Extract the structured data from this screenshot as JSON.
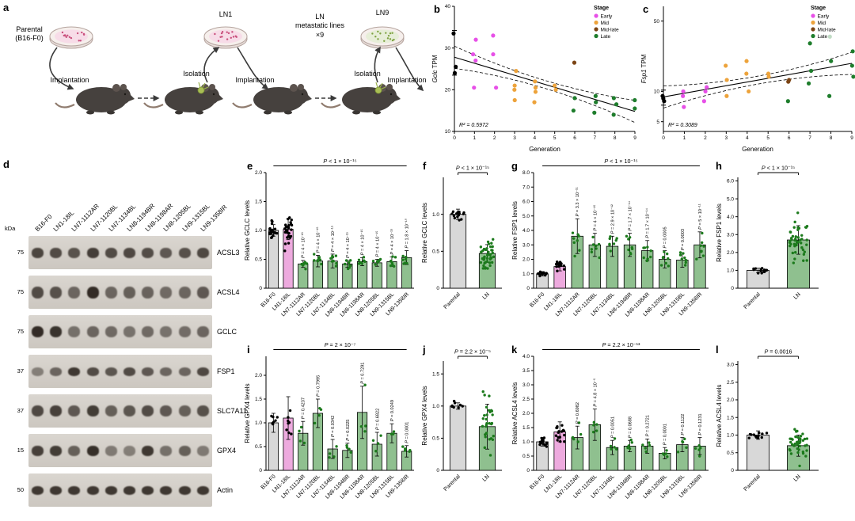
{
  "labels": {
    "a": "a",
    "b": "b",
    "c": "c",
    "d": "d",
    "e": "e",
    "f": "f",
    "g": "g",
    "h": "h",
    "i": "i",
    "j": "j",
    "k": "k",
    "l": "l"
  },
  "colors": {
    "bar_gray": "#d8d8d8",
    "bar_pink": "#edaade",
    "bar_green": "#8fc08f",
    "dot_green": "#1c7a1c",
    "dot_black": "#000000",
    "stage_early": "#e750e7",
    "stage_mid": "#eda33b",
    "stage_midlate": "#7b4414",
    "stage_late": "#1e7d2c"
  },
  "panel_a": {
    "parental_line1": "Parental",
    "parental_line2": "(B16-F0)",
    "ln1": "LN1",
    "ln9": "LN9",
    "met_line1": "LN",
    "met_line2": "metastatic lines",
    "met_line3": "×9",
    "implantation": "Implantation",
    "isolation": "Isolation"
  },
  "panel_d": {
    "kda_header": "kDa",
    "lanes": [
      "B16-F0",
      "LN1-18IL",
      "LN7-1112AR",
      "LN7-1120BL",
      "LN7-1134BL",
      "LN8-1194BR",
      "LN8-1198AR",
      "LN8-1205BL",
      "LN9-1315BL",
      "LN9-1358IR"
    ],
    "blots": [
      {
        "name": "ACSL3",
        "kda": "75",
        "bh": 13,
        "bands": [
          0.75,
          0.7,
          0.65,
          0.8,
          0.7,
          0.72,
          0.68,
          0.6,
          0.66,
          0.72
        ]
      },
      {
        "name": "ACSL4",
        "kda": "75",
        "bh": 15,
        "bands": [
          0.7,
          0.66,
          0.5,
          0.95,
          0.5,
          0.55,
          0.52,
          0.45,
          0.5,
          0.6
        ]
      },
      {
        "name": "GCLC",
        "kda": "75",
        "bh": 14,
        "bands": [
          0.95,
          0.88,
          0.42,
          0.5,
          0.45,
          0.4,
          0.46,
          0.4,
          0.44,
          0.5
        ]
      },
      {
        "name": "FSP1",
        "kda": "37",
        "bh": 11,
        "bands": [
          0.3,
          0.5,
          0.85,
          0.7,
          0.62,
          0.7,
          0.6,
          0.5,
          0.5,
          0.72
        ]
      },
      {
        "name": "SLC7A11",
        "kda": "37",
        "bh": 14,
        "bands": [
          0.72,
          0.78,
          0.6,
          0.82,
          0.55,
          0.62,
          0.7,
          0.6,
          0.55,
          0.66
        ]
      },
      {
        "name": "GPX4",
        "kda": "15",
        "bh": 13,
        "bands": [
          0.78,
          0.82,
          0.55,
          0.92,
          0.35,
          0.3,
          0.85,
          0.42,
          0.55,
          0.35
        ]
      },
      {
        "name": "Actin",
        "kda": "50",
        "bh": 11,
        "bands": [
          0.85,
          0.85,
          0.85,
          0.85,
          0.85,
          0.85,
          0.85,
          0.85,
          0.85,
          0.85
        ]
      }
    ]
  },
  "chart_data": [
    {
      "id": "b",
      "type": "scatter",
      "log": false,
      "ylabel_italic": "Gclc",
      "ylabel_rest": " TPM",
      "xlabel": "Generation",
      "r2": "R² = 0.5972",
      "ylim": [
        10,
        40
      ],
      "yticks": [
        10,
        20,
        30,
        40
      ],
      "ytick_labels": [
        "10",
        "20",
        "30",
        "40"
      ],
      "xlim": [
        0,
        9
      ],
      "xticks": [
        0,
        1,
        2,
        3,
        4,
        5,
        6,
        7,
        8,
        9
      ],
      "legend": {
        "title": "Stage",
        "entries": [
          {
            "label": "Early",
            "color": "#e750e7"
          },
          {
            "label": "Mid",
            "color": "#eda33b"
          },
          {
            "label": "Mid-late",
            "color": "#7b4414"
          },
          {
            "label": "Late",
            "color": "#1e7d2c"
          }
        ]
      },
      "ebar": {
        "x": 0,
        "lo": 23.5,
        "hi": 34.2
      },
      "series": [
        {
          "name": "Parental",
          "color": "#000000",
          "points": [
            [
              0,
              33.5
            ],
            [
              0,
              25.5
            ],
            [
              0,
              24
            ]
          ]
        },
        {
          "name": "Early",
          "color": "#e750e7",
          "points": [
            [
              1,
              32
            ],
            [
              1,
              28.5
            ],
            [
              1,
              27
            ],
            [
              1,
              20.5
            ],
            [
              2,
              33
            ],
            [
              2,
              28.5
            ],
            [
              2,
              20.5
            ]
          ]
        },
        {
          "name": "Mid",
          "color": "#eda33b",
          "points": [
            [
              3,
              24.5
            ],
            [
              3,
              21
            ],
            [
              3,
              20
            ],
            [
              3,
              17.5
            ],
            [
              4,
              22
            ],
            [
              4,
              20.5
            ],
            [
              4,
              19.5
            ],
            [
              4,
              17
            ],
            [
              5,
              21
            ],
            [
              5,
              20
            ]
          ]
        },
        {
          "name": "Mid-late",
          "color": "#7b4414",
          "points": [
            [
              6,
              26.5
            ]
          ]
        },
        {
          "name": "Late",
          "color": "#1e7d2c",
          "points": [
            [
              6,
              18
            ],
            [
              6,
              15
            ],
            [
              7,
              18.5
            ],
            [
              7,
              17
            ],
            [
              7,
              14.5
            ],
            [
              8,
              18
            ],
            [
              8,
              16.5
            ],
            [
              8,
              14
            ],
            [
              9,
              17.5
            ],
            [
              9,
              15.5
            ]
          ]
        }
      ],
      "fit": {
        "start": [
          0,
          27.8
        ],
        "end": [
          9,
          14.8
        ]
      }
    },
    {
      "id": "c",
      "type": "scatter",
      "log": true,
      "ylabel_italic": "Fsp1",
      "ylabel_rest": " TPM",
      "xlabel": "Generation",
      "r2": "R² = 0.3089",
      "ylim": [
        4,
        70
      ],
      "yticks": [
        5,
        10,
        50
      ],
      "ytick_labels": [
        "5",
        "10",
        "50"
      ],
      "xlim": [
        0,
        9
      ],
      "xticks": [
        0,
        1,
        2,
        3,
        4,
        5,
        6,
        7,
        8,
        9
      ],
      "legend": {
        "title": "Stage",
        "entries": [
          {
            "label": "Early",
            "color": "#e750e7"
          },
          {
            "label": "Mid",
            "color": "#eda33b"
          },
          {
            "label": "Mid-late",
            "color": "#7b4414"
          },
          {
            "label": "Late",
            "color": "#1e7d2c"
          }
        ]
      },
      "ebar": {
        "x": 0,
        "lo": 7.3,
        "hi": 10.3
      },
      "series": [
        {
          "name": "Parental",
          "color": "#000000",
          "points": [
            [
              0,
              9
            ],
            [
              0,
              8.5
            ],
            [
              0,
              8
            ]
          ]
        },
        {
          "name": "Early",
          "color": "#e750e7",
          "points": [
            [
              1,
              10
            ],
            [
              1,
              9
            ],
            [
              1,
              7
            ],
            [
              2,
              11
            ],
            [
              2,
              10
            ],
            [
              2,
              8
            ]
          ]
        },
        {
          "name": "Mid",
          "color": "#eda33b",
          "points": [
            [
              3,
              18
            ],
            [
              3,
              13
            ],
            [
              3,
              9
            ],
            [
              4,
              20
            ],
            [
              4,
              15
            ],
            [
              4,
              10
            ],
            [
              5,
              15
            ],
            [
              5,
              14
            ]
          ]
        },
        {
          "name": "Mid-late",
          "color": "#7b4414",
          "points": [
            [
              6,
              13
            ],
            [
              6,
              12.5
            ]
          ]
        },
        {
          "name": "Late",
          "color": "#1e7d2c",
          "points": [
            [
              6,
              8
            ],
            [
              7,
              30
            ],
            [
              7,
              16
            ],
            [
              7,
              12
            ],
            [
              8,
              35
            ],
            [
              8,
              20
            ],
            [
              8,
              9
            ],
            [
              9,
              25
            ],
            [
              9,
              18
            ],
            [
              9,
              14
            ]
          ]
        }
      ],
      "fit": {
        "start": [
          0,
          8.8
        ],
        "end": [
          9,
          19
        ]
      }
    },
    {
      "id": "e",
      "type": "bar",
      "ylabel": "Relative GCLC levels",
      "categories": [
        "B16-F0",
        "LN1-18IL",
        "LN7-1112AR",
        "LN7-1120BL",
        "LN7-1134BL",
        "LN8-1194BR",
        "LN8-1198AR",
        "LN8-1205BL",
        "LN9-1315BL",
        "LN9-1358IR"
      ],
      "values": [
        1.0,
        1.02,
        0.42,
        0.47,
        0.47,
        0.42,
        0.46,
        0.44,
        0.46,
        0.53
      ],
      "errors": [
        0.1,
        0.18,
        0.06,
        0.1,
        0.12,
        0.06,
        0.07,
        0.06,
        0.08,
        0.12
      ],
      "bar_colors": [
        "gray",
        "pink",
        "green",
        "green",
        "green",
        "green",
        "green",
        "green",
        "green",
        "green"
      ],
      "n_dots": [
        22,
        26,
        8,
        8,
        8,
        8,
        8,
        8,
        8,
        8
      ],
      "ylim": [
        0,
        2.0
      ],
      "yticks": [
        0,
        0.5,
        1.0,
        1.5,
        2.0
      ],
      "ytick_labels": [
        "0",
        "0.5",
        "1.0",
        "1.5",
        "2.0"
      ],
      "p_global": "P < 1 × 10⁻¹⁵",
      "p_values": [
        "P = 4 × 10⁻¹⁵",
        "P = 4 × 10⁻¹⁵",
        "P = 4 × 10⁻¹⁵",
        "P = 4 × 10⁻¹⁵",
        "P = 4 × 10⁻¹⁵",
        "P = 4 × 10⁻¹⁵",
        "P = 4 × 10⁻¹⁵",
        "P = 1.8 × 10⁻¹⁰"
      ]
    },
    {
      "id": "f",
      "type": "bar2",
      "ylabel": "Relative GCLC levels",
      "categories": [
        "Parental",
        "LN"
      ],
      "values": [
        1.0,
        0.47
      ],
      "errors": [
        0.07,
        0.12
      ],
      "bar_colors": [
        "gray",
        "green"
      ],
      "n_dots": [
        14,
        45
      ],
      "ylim": [
        0,
        1.5
      ],
      "yticks": [
        0,
        0.5,
        1.0
      ],
      "ytick_labels": [
        "0",
        "0.5",
        "1.0"
      ],
      "p_global": "P < 1 × 10⁻¹⁵"
    },
    {
      "id": "g",
      "type": "bar",
      "ylabel": "Relative FSP1 levels",
      "categories": [
        "B16-F0",
        "LN1-18IL",
        "LN7-1112AR",
        "LN7-1120BL",
        "LN7-1134BL",
        "LN8-1194BR",
        "LN8-1198AR",
        "LN8-1205BL",
        "LN9-1315BL",
        "LN9-1358IR"
      ],
      "values": [
        1.0,
        1.5,
        3.6,
        3.0,
        2.9,
        3.0,
        2.6,
        2.0,
        1.95,
        3.0
      ],
      "errors": [
        0.15,
        0.3,
        1.2,
        0.8,
        0.7,
        0.8,
        0.7,
        0.6,
        0.5,
        0.9
      ],
      "bar_colors": [
        "gray",
        "pink",
        "green",
        "green",
        "green",
        "green",
        "green",
        "green",
        "green",
        "green"
      ],
      "n_dots": [
        14,
        14,
        8,
        8,
        8,
        8,
        8,
        8,
        8,
        8
      ],
      "ylim": [
        0,
        8.0
      ],
      "yticks": [
        0,
        1,
        2,
        3,
        4,
        5,
        6,
        7,
        8
      ],
      "ytick_labels": [
        "0",
        "1.0",
        "2.0",
        "3.0",
        "4.0",
        "5.0",
        "6.0",
        "7.0",
        "8.0"
      ],
      "p_global": "P < 1 × 10⁻¹⁵",
      "p_values": [
        "P = 3.3 × 10⁻¹¹",
        "P = 4 × 10⁻¹⁵",
        "P = 2.9 × 10⁻¹²",
        "P = 1.7 × 10⁻¹⁴",
        "P = 1.7 × 10⁻¹⁴",
        "P = 0.0005",
        "P = 0.0003",
        "P = 5 × 10⁻¹¹"
      ]
    },
    {
      "id": "h",
      "type": "bar2",
      "ylabel": "Relative FSP1 levels",
      "categories": [
        "Parental",
        "LN"
      ],
      "values": [
        1.0,
        2.7
      ],
      "errors": [
        0.12,
        0.8
      ],
      "bar_colors": [
        "gray",
        "green"
      ],
      "n_dots": [
        14,
        45
      ],
      "ylim": [
        0,
        6.2
      ],
      "yticks": [
        0,
        1,
        2,
        3,
        4,
        5,
        6
      ],
      "ytick_labels": [
        "0",
        "1.0",
        "2.0",
        "3.0",
        "4.0",
        "5.0",
        "6.0"
      ],
      "p_global": "P < 1 × 10⁻¹⁵"
    },
    {
      "id": "i",
      "type": "bar",
      "ylabel": "Relative GPX4 levels",
      "categories": [
        "B16-F0",
        "LN1-18IL",
        "LN7-1112AR",
        "LN7-1120BL",
        "LN7-1134BL",
        "LN8-1194BR",
        "LN8-1198AR",
        "LN8-1205BL",
        "LN9-1315BL",
        "LN9-1358IR"
      ],
      "values": [
        1.0,
        1.1,
        0.78,
        1.2,
        0.45,
        0.42,
        1.22,
        0.55,
        0.78,
        0.4
      ],
      "errors": [
        0.2,
        0.45,
        0.25,
        0.3,
        0.2,
        0.15,
        0.55,
        0.25,
        0.2,
        0.12
      ],
      "bar_colors": [
        "gray",
        "pink",
        "green",
        "green",
        "green",
        "green",
        "green",
        "green",
        "green",
        "green"
      ],
      "n_dots": [
        7,
        8,
        4,
        4,
        4,
        4,
        4,
        4,
        4,
        6
      ],
      "ylim": [
        0,
        2.4
      ],
      "yticks": [
        0,
        0.5,
        1.0,
        1.5,
        2.0
      ],
      "ytick_labels": [
        "0",
        "0.5",
        "1.0",
        "1.5",
        "2.0"
      ],
      "p_global": "P = 2 × 10⁻⁷",
      "p_values": [
        "P = 0.4237",
        "P = 0.7995",
        "P = 0.0342",
        "P = 0.0225",
        "P = 0.7291",
        "P = 0.6822",
        "P = 0.0249",
        "P = 0.0001"
      ]
    },
    {
      "id": "j",
      "type": "bar2",
      "ylabel": "Relative GPX4 levels",
      "categories": [
        "Parental",
        "LN"
      ],
      "values": [
        1.0,
        0.68
      ],
      "errors": [
        0.05,
        0.35
      ],
      "bar_colors": [
        "gray",
        "green"
      ],
      "n_dots": [
        8,
        30
      ],
      "ylim": [
        0,
        1.7
      ],
      "yticks": [
        0,
        0.5,
        1.0,
        1.5
      ],
      "ytick_labels": [
        "0",
        "0.5",
        "1.0",
        "1.5"
      ],
      "p_global": "P = 2.2 × 10⁻⁵"
    },
    {
      "id": "k",
      "type": "bar",
      "ylabel": "Relative ACSL4 levels",
      "categories": [
        "B16-F0",
        "LN1-18IL",
        "LN7-1112AR",
        "LN7-1120BL",
        "LN7-1134BL",
        "LN8-1194BR",
        "LN8-1198AR",
        "LN8-1205BL",
        "LN9-1315BL",
        "LN9-1358IR"
      ],
      "values": [
        1.0,
        1.35,
        1.15,
        1.6,
        0.8,
        0.85,
        0.85,
        0.6,
        0.9,
        0.85
      ],
      "errors": [
        0.15,
        0.35,
        0.4,
        0.55,
        0.25,
        0.2,
        0.25,
        0.2,
        0.25,
        0.3
      ],
      "bar_colors": [
        "gray",
        "pink",
        "green",
        "green",
        "green",
        "green",
        "green",
        "green",
        "green",
        "green"
      ],
      "n_dots": [
        14,
        16,
        5,
        5,
        5,
        5,
        5,
        5,
        5,
        5
      ],
      "ylim": [
        0,
        4.0
      ],
      "yticks": [
        0,
        0.5,
        1.0,
        1.5,
        2.0,
        2.5,
        3.0,
        3.5,
        4.0
      ],
      "ytick_labels": [
        "0",
        "0.5",
        "1.0",
        "1.5",
        "2.0",
        "2.5",
        "3.0",
        "3.5",
        "4.0"
      ],
      "p_global": "P = 2.2 × 10⁻¹³",
      "p_values": [
        "P = 0.6982",
        "P = 4.8 × 10⁻⁵",
        "P = 0.0051",
        "P = 0.0688",
        "P = 0.2721",
        "P = 0.0001",
        "P = 0.1122",
        "P = 0.1231"
      ]
    },
    {
      "id": "l",
      "type": "bar2",
      "ylabel": "Relative ACSL4 levels",
      "categories": [
        "Parental",
        "LN"
      ],
      "values": [
        1.0,
        0.7
      ],
      "errors": [
        0.12,
        0.3
      ],
      "bar_colors": [
        "gray",
        "green"
      ],
      "n_dots": [
        12,
        40
      ],
      "ylim": [
        0,
        3.1
      ],
      "yticks": [
        0,
        0.5,
        1.0,
        1.5,
        2.0,
        2.5,
        3.0
      ],
      "ytick_labels": [
        "0",
        "0.5",
        "1.0",
        "1.5",
        "2.0",
        "2.5",
        "3.0"
      ],
      "p_global": "P = 0.0016"
    }
  ]
}
